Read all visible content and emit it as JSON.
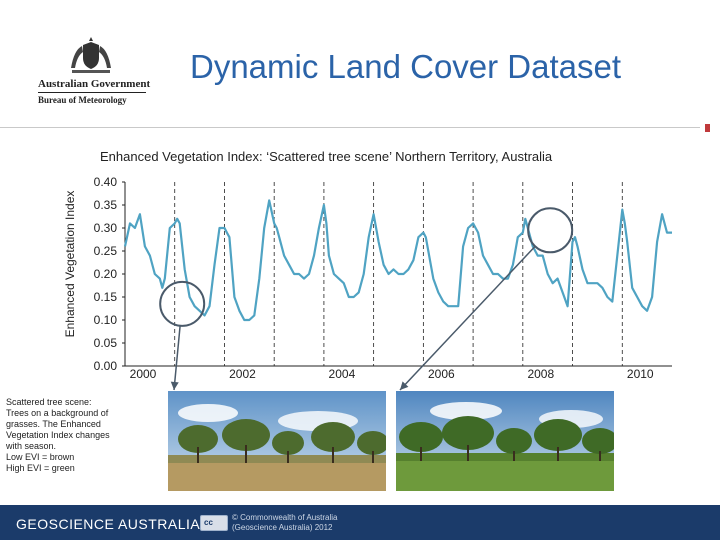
{
  "header": {
    "logo_line1": "Australian Government",
    "logo_line2": "Bureau of Meteorology",
    "title": "Dynamic Land Cover Dataset"
  },
  "chart_data": {
    "type": "line",
    "title": "Enhanced Vegetation Index: ‘Scattered tree scene’ Northern Territory, Australia",
    "ylabel": "Enhanced Vegetation Index",
    "xlabel": "",
    "ylim": [
      0.0,
      0.4
    ],
    "xlim": [
      2000,
      2011.0
    ],
    "y_ticks": [
      "0.40",
      "0.35",
      "0.30",
      "0.25",
      "0.20",
      "0.15",
      "0.10",
      "0.05",
      "0.00"
    ],
    "x_ticks": [
      "2000",
      "2002",
      "2004",
      "2006",
      "2008",
      "2010"
    ],
    "grid": "dashed vertical lines at year boundaries",
    "line_color": "#4fa3c3",
    "highlight_color": "#4a5a6a",
    "series": [
      {
        "x": [
          2000.0,
          2000.1,
          2000.2,
          2000.3,
          2000.4,
          2000.5,
          2000.6,
          2000.7,
          2000.75,
          2000.8,
          2000.9,
          2001.0,
          2001.05,
          2001.1,
          2001.2,
          2001.3,
          2001.4,
          2001.5,
          2001.6,
          2001.7,
          2001.8,
          2001.9,
          2002.0,
          2002.05,
          2002.1,
          2002.2,
          2002.3,
          2002.4,
          2002.5,
          2002.6,
          2002.7,
          2002.8,
          2002.9,
          2003.0,
          2003.05,
          2003.1,
          2003.2,
          2003.3,
          2003.4,
          2003.5,
          2003.6,
          2003.7,
          2003.8,
          2003.9,
          2004.0,
          2004.05,
          2004.1,
          2004.2,
          2004.3,
          2004.4,
          2004.5,
          2004.6,
          2004.7,
          2004.8,
          2004.9,
          2005.0,
          2005.05,
          2005.1,
          2005.2,
          2005.3,
          2005.4,
          2005.5,
          2005.6,
          2005.7,
          2005.8,
          2005.9,
          2006.0,
          2006.05,
          2006.1,
          2006.2,
          2006.3,
          2006.4,
          2006.5,
          2006.6,
          2006.7,
          2006.8,
          2006.9,
          2007.0,
          2007.05,
          2007.1,
          2007.2,
          2007.3,
          2007.4,
          2007.5,
          2007.6,
          2007.7,
          2007.8,
          2007.9,
          2008.0,
          2008.05,
          2008.1,
          2008.2,
          2008.3,
          2008.4,
          2008.5,
          2008.6,
          2008.7,
          2008.8,
          2008.9,
          2009.0,
          2009.05,
          2009.1,
          2009.2,
          2009.3,
          2009.4,
          2009.5,
          2009.6,
          2009.7,
          2009.8,
          2009.9,
          2010.0,
          2010.05,
          2010.1,
          2010.2,
          2010.3,
          2010.4,
          2010.5,
          2010.6,
          2010.7,
          2010.8,
          2010.9,
          2011.0
        ],
        "y": [
          0.26,
          0.31,
          0.3,
          0.33,
          0.26,
          0.24,
          0.2,
          0.19,
          0.17,
          0.19,
          0.3,
          0.31,
          0.32,
          0.31,
          0.21,
          0.15,
          0.13,
          0.12,
          0.11,
          0.13,
          0.22,
          0.3,
          0.3,
          0.29,
          0.28,
          0.15,
          0.12,
          0.1,
          0.1,
          0.11,
          0.19,
          0.3,
          0.36,
          0.31,
          0.3,
          0.28,
          0.24,
          0.22,
          0.2,
          0.2,
          0.19,
          0.2,
          0.24,
          0.3,
          0.35,
          0.31,
          0.24,
          0.2,
          0.19,
          0.18,
          0.15,
          0.15,
          0.16,
          0.2,
          0.28,
          0.33,
          0.3,
          0.27,
          0.22,
          0.2,
          0.21,
          0.2,
          0.2,
          0.21,
          0.23,
          0.28,
          0.29,
          0.28,
          0.25,
          0.19,
          0.16,
          0.14,
          0.13,
          0.13,
          0.13,
          0.26,
          0.3,
          0.31,
          0.3,
          0.29,
          0.24,
          0.22,
          0.2,
          0.2,
          0.19,
          0.19,
          0.22,
          0.28,
          0.29,
          0.32,
          0.3,
          0.26,
          0.24,
          0.24,
          0.2,
          0.18,
          0.19,
          0.16,
          0.13,
          0.27,
          0.28,
          0.26,
          0.21,
          0.18,
          0.18,
          0.18,
          0.17,
          0.15,
          0.14,
          0.24,
          0.34,
          0.31,
          0.27,
          0.17,
          0.15,
          0.13,
          0.12,
          0.15,
          0.27,
          0.33,
          0.29,
          0.29
        ]
      }
    ],
    "highlights": [
      {
        "x": 2001.15,
        "y": 0.135
      },
      {
        "x": 2008.55,
        "y": 0.295
      }
    ]
  },
  "caption": {
    "lines": [
      "Scattered tree scene:",
      "Trees on a background of",
      "grasses. The Enhanced",
      "Vegetation Index changes",
      "with season.",
      "Low EVI = brown",
      "High EVI = green"
    ]
  },
  "footer": {
    "brand": "GEOSCIENCE AUSTRALIA",
    "badge": "cc",
    "copy_line1": "© Commonwealth of Australia",
    "copy_line2": "(Geoscience Australia) 2012"
  }
}
